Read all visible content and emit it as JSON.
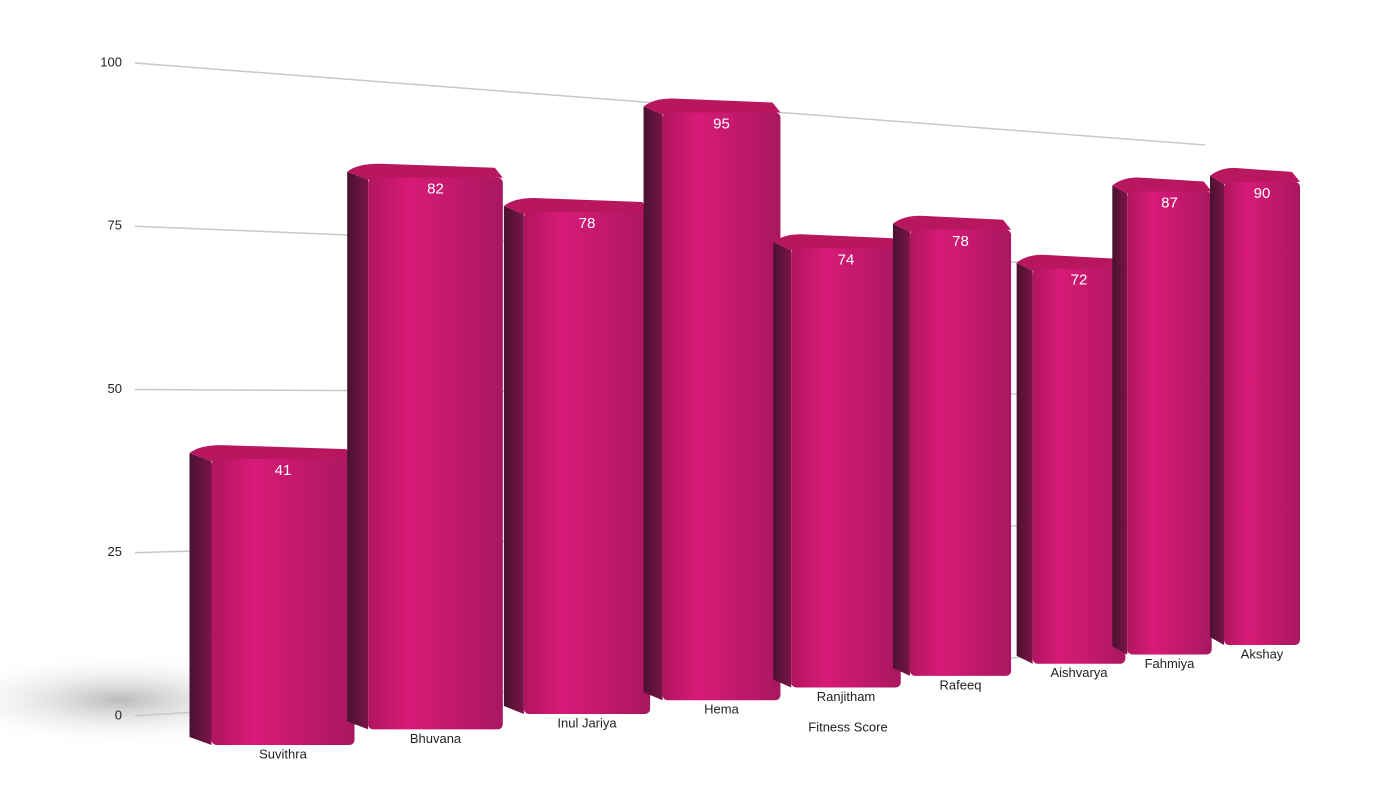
{
  "chart_data": {
    "type": "bar",
    "x_label": "Fitness Score",
    "categories": [
      "Suvithra",
      "Bhuvana",
      "Inul Jariya",
      "Hema",
      "Ranjitham",
      "Rafeeq",
      "Aishvarya",
      "Fahmiya",
      "Akshay"
    ],
    "values": [
      41,
      82,
      78,
      95,
      74,
      78,
      72,
      87,
      90
    ],
    "color": "#c8186f",
    "ylim": [
      0,
      100
    ],
    "yticks": [
      0,
      25,
      50,
      75,
      100
    ],
    "grid": true
  }
}
